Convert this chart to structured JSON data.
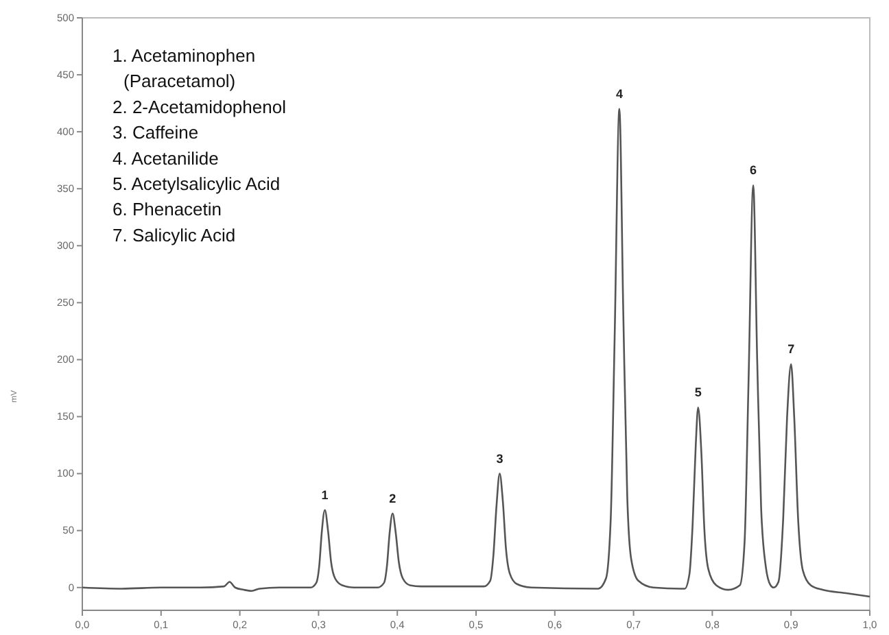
{
  "chart_data": {
    "type": "line",
    "ylabel": "mV",
    "x": [
      0,
      0.05,
      0.1,
      0.15,
      0.18,
      0.187,
      0.194,
      0.205,
      0.215,
      0.225,
      0.25,
      0.28,
      0.29,
      0.297,
      0.301,
      0.304,
      0.308,
      0.312,
      0.316,
      0.321,
      0.33,
      0.345,
      0.375,
      0.383,
      0.387,
      0.39,
      0.394,
      0.398,
      0.402,
      0.407,
      0.416,
      0.43,
      0.51,
      0.518,
      0.522,
      0.526,
      0.53,
      0.534,
      0.538,
      0.543,
      0.552,
      0.57,
      0.655,
      0.665,
      0.671,
      0.676,
      0.682,
      0.687,
      0.692,
      0.697,
      0.706,
      0.725,
      0.76,
      0.765,
      0.771,
      0.775,
      0.779,
      0.782,
      0.786,
      0.79,
      0.795,
      0.805,
      0.82,
      0.835,
      0.841,
      0.846,
      0.852,
      0.857,
      0.862,
      0.868,
      0.874,
      0.878,
      0.884,
      0.89,
      0.895,
      0.9,
      0.904,
      0.909,
      0.915,
      0.925,
      0.94,
      0.97,
      1.0
    ],
    "series": [
      {
        "color": "#555555",
        "values": [
          0,
          -1,
          0,
          0,
          1,
          5,
          0,
          -2,
          -3,
          -1,
          0,
          0,
          0,
          4,
          20,
          48,
          68,
          50,
          22,
          8,
          2,
          0,
          0,
          4,
          20,
          46,
          65,
          48,
          22,
          8,
          2,
          1,
          1,
          6,
          28,
          72,
          100,
          76,
          34,
          12,
          3,
          0,
          -1,
          8,
          60,
          220,
          420,
          240,
          80,
          25,
          6,
          0,
          -1,
          -1,
          12,
          55,
          125,
          158,
          120,
          50,
          16,
          2,
          -2,
          2,
          40,
          180,
          353,
          200,
          70,
          18,
          2,
          0,
          5,
          60,
          150,
          196,
          150,
          60,
          15,
          2,
          -2,
          -5,
          -8
        ]
      }
    ],
    "xlim": [
      0,
      1
    ],
    "ylim": [
      -20,
      500
    ],
    "xticks": [
      {
        "value": 0,
        "label": "0,0"
      },
      {
        "value": 0.1,
        "label": "0,1"
      },
      {
        "value": 0.2,
        "label": "0,2"
      },
      {
        "value": 0.3,
        "label": "0,3"
      },
      {
        "value": 0.4,
        "label": "0,4"
      },
      {
        "value": 0.5,
        "label": "0,5"
      },
      {
        "value": 0.6,
        "label": "0,6"
      },
      {
        "value": 0.7,
        "label": "0,7"
      },
      {
        "value": 0.8,
        "label": "0,8"
      },
      {
        "value": 0.9,
        "label": "0,9"
      },
      {
        "value": 1,
        "label": "1,0"
      }
    ],
    "yticks": [
      0,
      50,
      100,
      150,
      200,
      250,
      300,
      350,
      400,
      450,
      500
    ],
    "grid": false,
    "marker": "none",
    "line_style": "solid",
    "annotations": [
      "1. Acetaminophen",
      "(Paracetamol)",
      "2. 2-Acetamidophenol",
      "3. Caffeine",
      "4. Acetanilide",
      "5. Acetylsalicylic Acid",
      "6. Phenacetin",
      "7. Salicylic Acid",
      {
        "text": "1",
        "x": 0.308,
        "y": 68
      },
      {
        "text": "2",
        "x": 0.394,
        "y": 65
      },
      {
        "text": "3",
        "x": 0.53,
        "y": 100
      },
      {
        "text": "4",
        "x": 0.682,
        "y": 420
      },
      {
        "text": "5",
        "x": 0.782,
        "y": 158
      },
      {
        "text": "6",
        "x": 0.852,
        "y": 353
      },
      {
        "text": "7",
        "x": 0.9,
        "y": 196
      }
    ]
  }
}
